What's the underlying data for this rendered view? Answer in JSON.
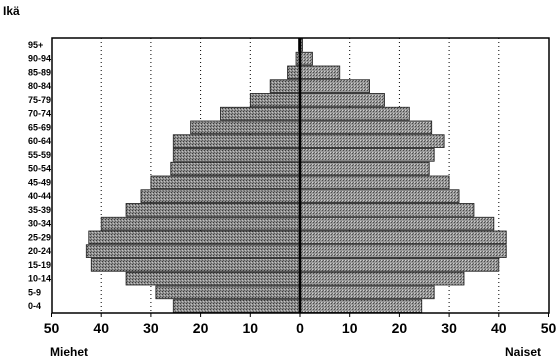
{
  "chart_data": {
    "type": "bar",
    "orientation": "horizontal",
    "subtype": "population-pyramid",
    "ylabel": "Ikä",
    "left_label": "Miehet",
    "right_label": "Naiset",
    "categories": [
      "0-4",
      "5-9",
      "10-14",
      "15-19",
      "20-24",
      "25-29",
      "30-34",
      "35-39",
      "40-44",
      "45-49",
      "50-54",
      "55-59",
      "60-64",
      "65-69",
      "70-74",
      "75-79",
      "80-84",
      "85-89",
      "90-94",
      "95+"
    ],
    "series": [
      {
        "name": "Miehet",
        "side": "left",
        "values": [
          25.5,
          29,
          35,
          42,
          43,
          42.5,
          40,
          35,
          32,
          30,
          26,
          25.5,
          25.5,
          22,
          16,
          10,
          6,
          2.5,
          0.8,
          0.3
        ]
      },
      {
        "name": "Naiset",
        "side": "right",
        "values": [
          24.5,
          27,
          33,
          40,
          41.5,
          41.5,
          39,
          35,
          32,
          30,
          26,
          27,
          29,
          26.5,
          22,
          17,
          14,
          8,
          2.5,
          0.5
        ]
      }
    ],
    "xticks": [
      50,
      40,
      30,
      20,
      10,
      0,
      10,
      20,
      30,
      40,
      50
    ],
    "xlim": [
      -50,
      50
    ],
    "grid": "vertical-dotted"
  }
}
